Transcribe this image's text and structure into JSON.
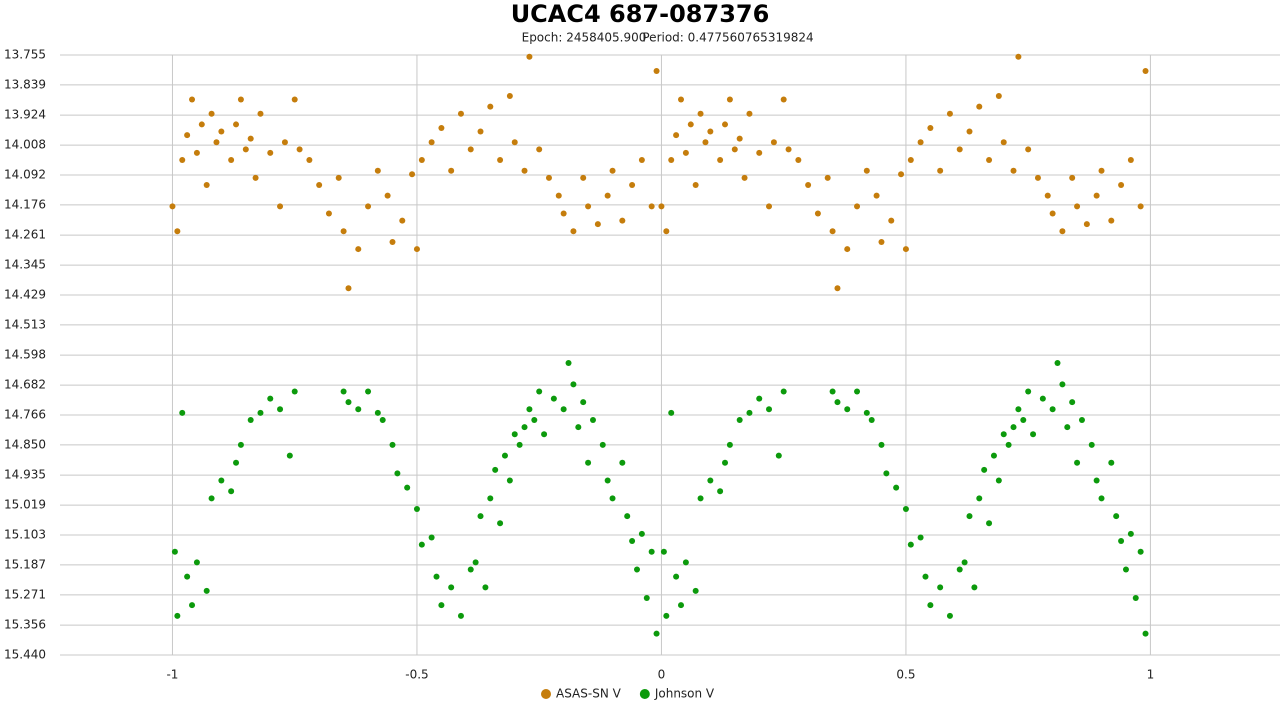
{
  "chart_data": {
    "type": "scatter",
    "title": "UCAC4 687-087376",
    "subtitle": [
      "Epoch: 2458405.900",
      "Period: 0.477560765319824"
    ],
    "xlim": [
      -1.23,
      1.265
    ],
    "ylim": [
      15.44,
      13.755
    ],
    "xticks": [
      -1,
      -0.5,
      0,
      0.5,
      1
    ],
    "yticks": [
      13.755,
      13.839,
      13.924,
      14.008,
      14.092,
      14.176,
      14.261,
      14.345,
      14.429,
      14.513,
      14.598,
      14.682,
      14.766,
      {
        "value": 14.85,
        "label": "14.850"
      },
      14.935,
      15.019,
      15.103,
      15.187,
      15.271,
      15.356,
      {
        "value": 15.44,
        "label": "15.440"
      }
    ],
    "grid": true,
    "legend": "bottom",
    "series": [
      {
        "name": "ASAS-SN V",
        "color": "#c57d0c",
        "x": [
          -1,
          -0.99,
          -0.98,
          -0.97,
          -0.96,
          -0.95,
          -0.94,
          -0.93,
          -0.92,
          -0.91,
          -0.9,
          -0.88,
          -0.87,
          -0.86,
          -0.85,
          -0.84,
          -0.83,
          -0.82,
          -0.8,
          -0.78,
          -0.77,
          -0.75,
          -0.74,
          -0.72,
          -0.7,
          -0.68,
          -0.66,
          -0.65,
          -0.64,
          -0.62,
          -0.6,
          -0.58,
          -0.56,
          -0.55,
          -0.53,
          -0.51,
          -0.5,
          -0.49,
          -0.47,
          -0.45,
          -0.43,
          -0.41,
          -0.39,
          -0.37,
          -0.35,
          -0.33,
          -0.31,
          -0.3,
          -0.28,
          -0.27,
          -0.25,
          -0.23,
          -0.21,
          -0.2,
          -0.18,
          -0.16,
          -0.15,
          -0.13,
          -0.11,
          -0.1,
          -0.08,
          -0.06,
          -0.04,
          -0.02,
          -0.01,
          0,
          0.01,
          0.02,
          0.03,
          0.04,
          0.05,
          0.06,
          0.07,
          0.08,
          0.09,
          0.1,
          0.12,
          0.13,
          0.14,
          0.15,
          0.16,
          0.17,
          0.18,
          0.2,
          0.22,
          0.23,
          0.25,
          0.26,
          0.28,
          0.3,
          0.32,
          0.34,
          0.35,
          0.36,
          0.38,
          0.4,
          0.42,
          0.44,
          0.45,
          0.47,
          0.49,
          0.5,
          0.51,
          0.53,
          0.55,
          0.57,
          0.59,
          0.61,
          0.63,
          0.65,
          0.67,
          0.69,
          0.7,
          0.72,
          0.73,
          0.75,
          0.77,
          0.79,
          0.8,
          0.82,
          0.84,
          0.85,
          0.87,
          0.89,
          0.9,
          0.92,
          0.94,
          0.96,
          0.98,
          0.99
        ],
        "values": [
          14.18,
          14.25,
          14.05,
          13.98,
          13.88,
          14.03,
          13.95,
          14.12,
          13.92,
          14.0,
          13.97,
          14.05,
          13.95,
          13.88,
          14.02,
          13.99,
          14.1,
          13.92,
          14.03,
          14.18,
          14.0,
          13.88,
          14.02,
          14.05,
          14.12,
          14.2,
          14.1,
          14.25,
          14.41,
          14.3,
          14.18,
          14.08,
          14.15,
          14.28,
          14.22,
          14.09,
          14.3,
          14.05,
          14.0,
          13.96,
          14.08,
          13.92,
          14.02,
          13.97,
          13.9,
          14.05,
          13.87,
          14.0,
          14.08,
          13.76,
          14.02,
          14.1,
          14.15,
          14.2,
          14.25,
          14.1,
          14.18,
          14.23,
          14.15,
          14.08,
          14.22,
          14.12,
          14.05,
          14.18,
          13.8,
          14.18,
          14.25,
          14.05,
          13.98,
          13.88,
          14.03,
          13.95,
          14.12,
          13.92,
          14.0,
          13.97,
          14.05,
          13.95,
          13.88,
          14.02,
          13.99,
          14.1,
          13.92,
          14.03,
          14.18,
          14.0,
          13.88,
          14.02,
          14.05,
          14.12,
          14.2,
          14.1,
          14.25,
          14.41,
          14.3,
          14.18,
          14.08,
          14.15,
          14.28,
          14.22,
          14.09,
          14.3,
          14.05,
          14.0,
          13.96,
          14.08,
          13.92,
          14.02,
          13.97,
          13.9,
          14.05,
          13.87,
          14.0,
          14.08,
          13.76,
          14.02,
          14.1,
          14.15,
          14.2,
          14.25,
          14.1,
          14.18,
          14.23,
          14.15,
          14.08,
          14.22,
          14.12,
          14.05,
          14.18,
          13.8
        ]
      },
      {
        "name": "Johnson V",
        "color": "#0c9a0c",
        "x": [
          -0.995,
          -0.99,
          -0.98,
          -0.97,
          -0.96,
          -0.95,
          -0.93,
          -0.92,
          -0.9,
          -0.88,
          -0.87,
          -0.86,
          -0.84,
          -0.82,
          -0.8,
          -0.78,
          -0.76,
          -0.75,
          -0.65,
          -0.64,
          -0.62,
          -0.6,
          -0.58,
          -0.57,
          -0.55,
          -0.54,
          -0.52,
          -0.5,
          -0.49,
          -0.47,
          -0.46,
          -0.45,
          -0.43,
          -0.41,
          -0.39,
          -0.38,
          -0.37,
          -0.36,
          -0.35,
          -0.34,
          -0.33,
          -0.32,
          -0.31,
          -0.3,
          -0.29,
          -0.28,
          -0.27,
          -0.26,
          -0.25,
          -0.24,
          -0.22,
          -0.2,
          -0.19,
          -0.18,
          -0.17,
          -0.16,
          -0.15,
          -0.14,
          -0.12,
          -0.11,
          -0.1,
          -0.08,
          -0.07,
          -0.06,
          -0.05,
          -0.04,
          -0.03,
          -0.02,
          -0.01,
          0.005,
          0.01,
          0.02,
          0.03,
          0.04,
          0.05,
          0.07,
          0.08,
          0.1,
          0.12,
          0.13,
          0.14,
          0.16,
          0.18,
          0.2,
          0.22,
          0.24,
          0.25,
          0.35,
          0.36,
          0.38,
          0.4,
          0.42,
          0.43,
          0.45,
          0.46,
          0.48,
          0.5,
          0.51,
          0.53,
          0.54,
          0.55,
          0.57,
          0.59,
          0.61,
          0.62,
          0.63,
          0.64,
          0.65,
          0.66,
          0.67,
          0.68,
          0.69,
          0.7,
          0.71,
          0.72,
          0.73,
          0.74,
          0.75,
          0.76,
          0.78,
          0.8,
          0.81,
          0.82,
          0.83,
          0.84,
          0.85,
          0.86,
          0.88,
          0.89,
          0.9,
          0.92,
          0.93,
          0.94,
          0.95,
          0.96,
          0.97,
          0.98,
          0.99
        ],
        "values": [
          15.15,
          15.33,
          14.76,
          15.22,
          15.3,
          15.18,
          15.26,
          15.0,
          14.95,
          14.98,
          14.9,
          14.85,
          14.78,
          14.76,
          14.72,
          14.75,
          14.88,
          14.7,
          14.7,
          14.73,
          14.75,
          14.7,
          14.76,
          14.78,
          14.85,
          14.93,
          14.97,
          15.03,
          15.13,
          15.11,
          15.22,
          15.3,
          15.25,
          15.33,
          15.2,
          15.18,
          15.05,
          15.25,
          15.0,
          14.92,
          15.07,
          14.88,
          14.95,
          14.82,
          14.85,
          14.8,
          14.75,
          14.78,
          14.7,
          14.82,
          14.72,
          14.75,
          14.62,
          14.68,
          14.8,
          14.73,
          14.9,
          14.78,
          14.85,
          14.95,
          15.0,
          14.9,
          15.05,
          15.12,
          15.2,
          15.1,
          15.28,
          15.15,
          15.38,
          15.15,
          15.33,
          14.76,
          15.22,
          15.3,
          15.18,
          15.26,
          15.0,
          14.95,
          14.98,
          14.9,
          14.85,
          14.78,
          14.76,
          14.72,
          14.75,
          14.88,
          14.7,
          14.7,
          14.73,
          14.75,
          14.7,
          14.76,
          14.78,
          14.85,
          14.93,
          14.97,
          15.03,
          15.13,
          15.11,
          15.22,
          15.3,
          15.25,
          15.33,
          15.2,
          15.18,
          15.05,
          15.25,
          15.0,
          14.92,
          15.07,
          14.88,
          14.95,
          14.82,
          14.85,
          14.8,
          14.75,
          14.78,
          14.7,
          14.82,
          14.72,
          14.75,
          14.62,
          14.68,
          14.8,
          14.73,
          14.9,
          14.78,
          14.85,
          14.95,
          15.0,
          14.9,
          15.05,
          15.12,
          15.2,
          15.1,
          15.28,
          15.15,
          15.38
        ]
      }
    ]
  }
}
